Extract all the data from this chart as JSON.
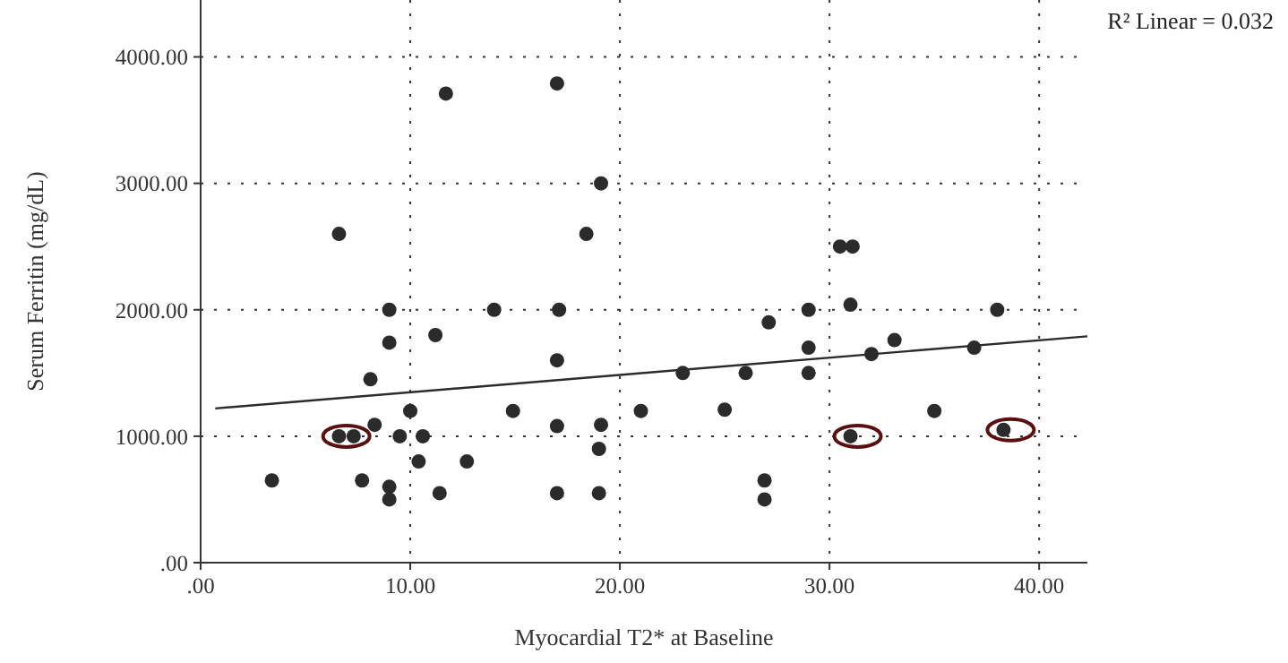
{
  "chart_data": {
    "type": "scatter",
    "xlabel": "Myocardial T2* at Baseline",
    "ylabel": "Serum Ferritin (mg/dL)",
    "annotations": [
      "R² Linear = 0.032"
    ],
    "xlim": [
      0,
      42.3
    ],
    "ylim": [
      0,
      4450
    ],
    "xticks": [
      {
        "value": 0,
        "label": ".00"
      },
      {
        "value": 10,
        "label": "10.00"
      },
      {
        "value": 20,
        "label": "20.00"
      },
      {
        "value": 30,
        "label": "30.00"
      },
      {
        "value": 40,
        "label": "40.00"
      }
    ],
    "yticks": [
      {
        "value": 0,
        "label": ".00"
      },
      {
        "value": 1000,
        "label": "1000.00"
      },
      {
        "value": 2000,
        "label": "2000.00"
      },
      {
        "value": 3000,
        "label": "3000.00"
      },
      {
        "value": 4000,
        "label": "4000.00"
      }
    ],
    "grid": true,
    "marker": "circle",
    "series": [
      {
        "color": "#2b2b2b",
        "x": [
          3.4,
          6.6,
          6.6,
          7.3,
          7.7,
          8.1,
          8.3,
          9.0,
          9.0,
          9.0,
          9.0,
          9.5,
          10.0,
          10.6,
          10.4,
          11.2,
          11.4,
          11.7,
          12.7,
          14.0,
          14.9,
          17.0,
          17.1,
          17.0,
          17.0,
          17.0,
          18.4,
          19.1,
          19.1,
          19.0,
          19.0,
          21.0,
          23.0,
          25.0,
          26.0,
          27.1,
          26.9,
          26.9,
          29.0,
          29.0,
          29.0,
          30.5,
          31.1,
          31.0,
          31.0,
          32.0,
          33.1,
          35.0,
          36.9,
          38.0,
          38.3
        ],
        "values": [
          650,
          2600,
          1000,
          1000,
          650,
          1450,
          1090,
          2000,
          1740,
          600,
          500,
          1000,
          1200,
          1000,
          800,
          1800,
          550,
          3710,
          800,
          2000,
          1200,
          3790,
          2000,
          1600,
          1080,
          550,
          2600,
          3000,
          1090,
          900,
          550,
          1200,
          1500,
          1210,
          1500,
          1900,
          650,
          500,
          2000,
          1700,
          1500,
          2500,
          2500,
          2040,
          1000,
          1650,
          1760,
          1200,
          1700,
          2000,
          1050
        ]
      },
      {
        "type": "line",
        "color": "#2b2b2b",
        "marker": "none",
        "x": [
          0.7,
          42.3
        ],
        "values": [
          1220,
          1790
        ]
      }
    ]
  }
}
